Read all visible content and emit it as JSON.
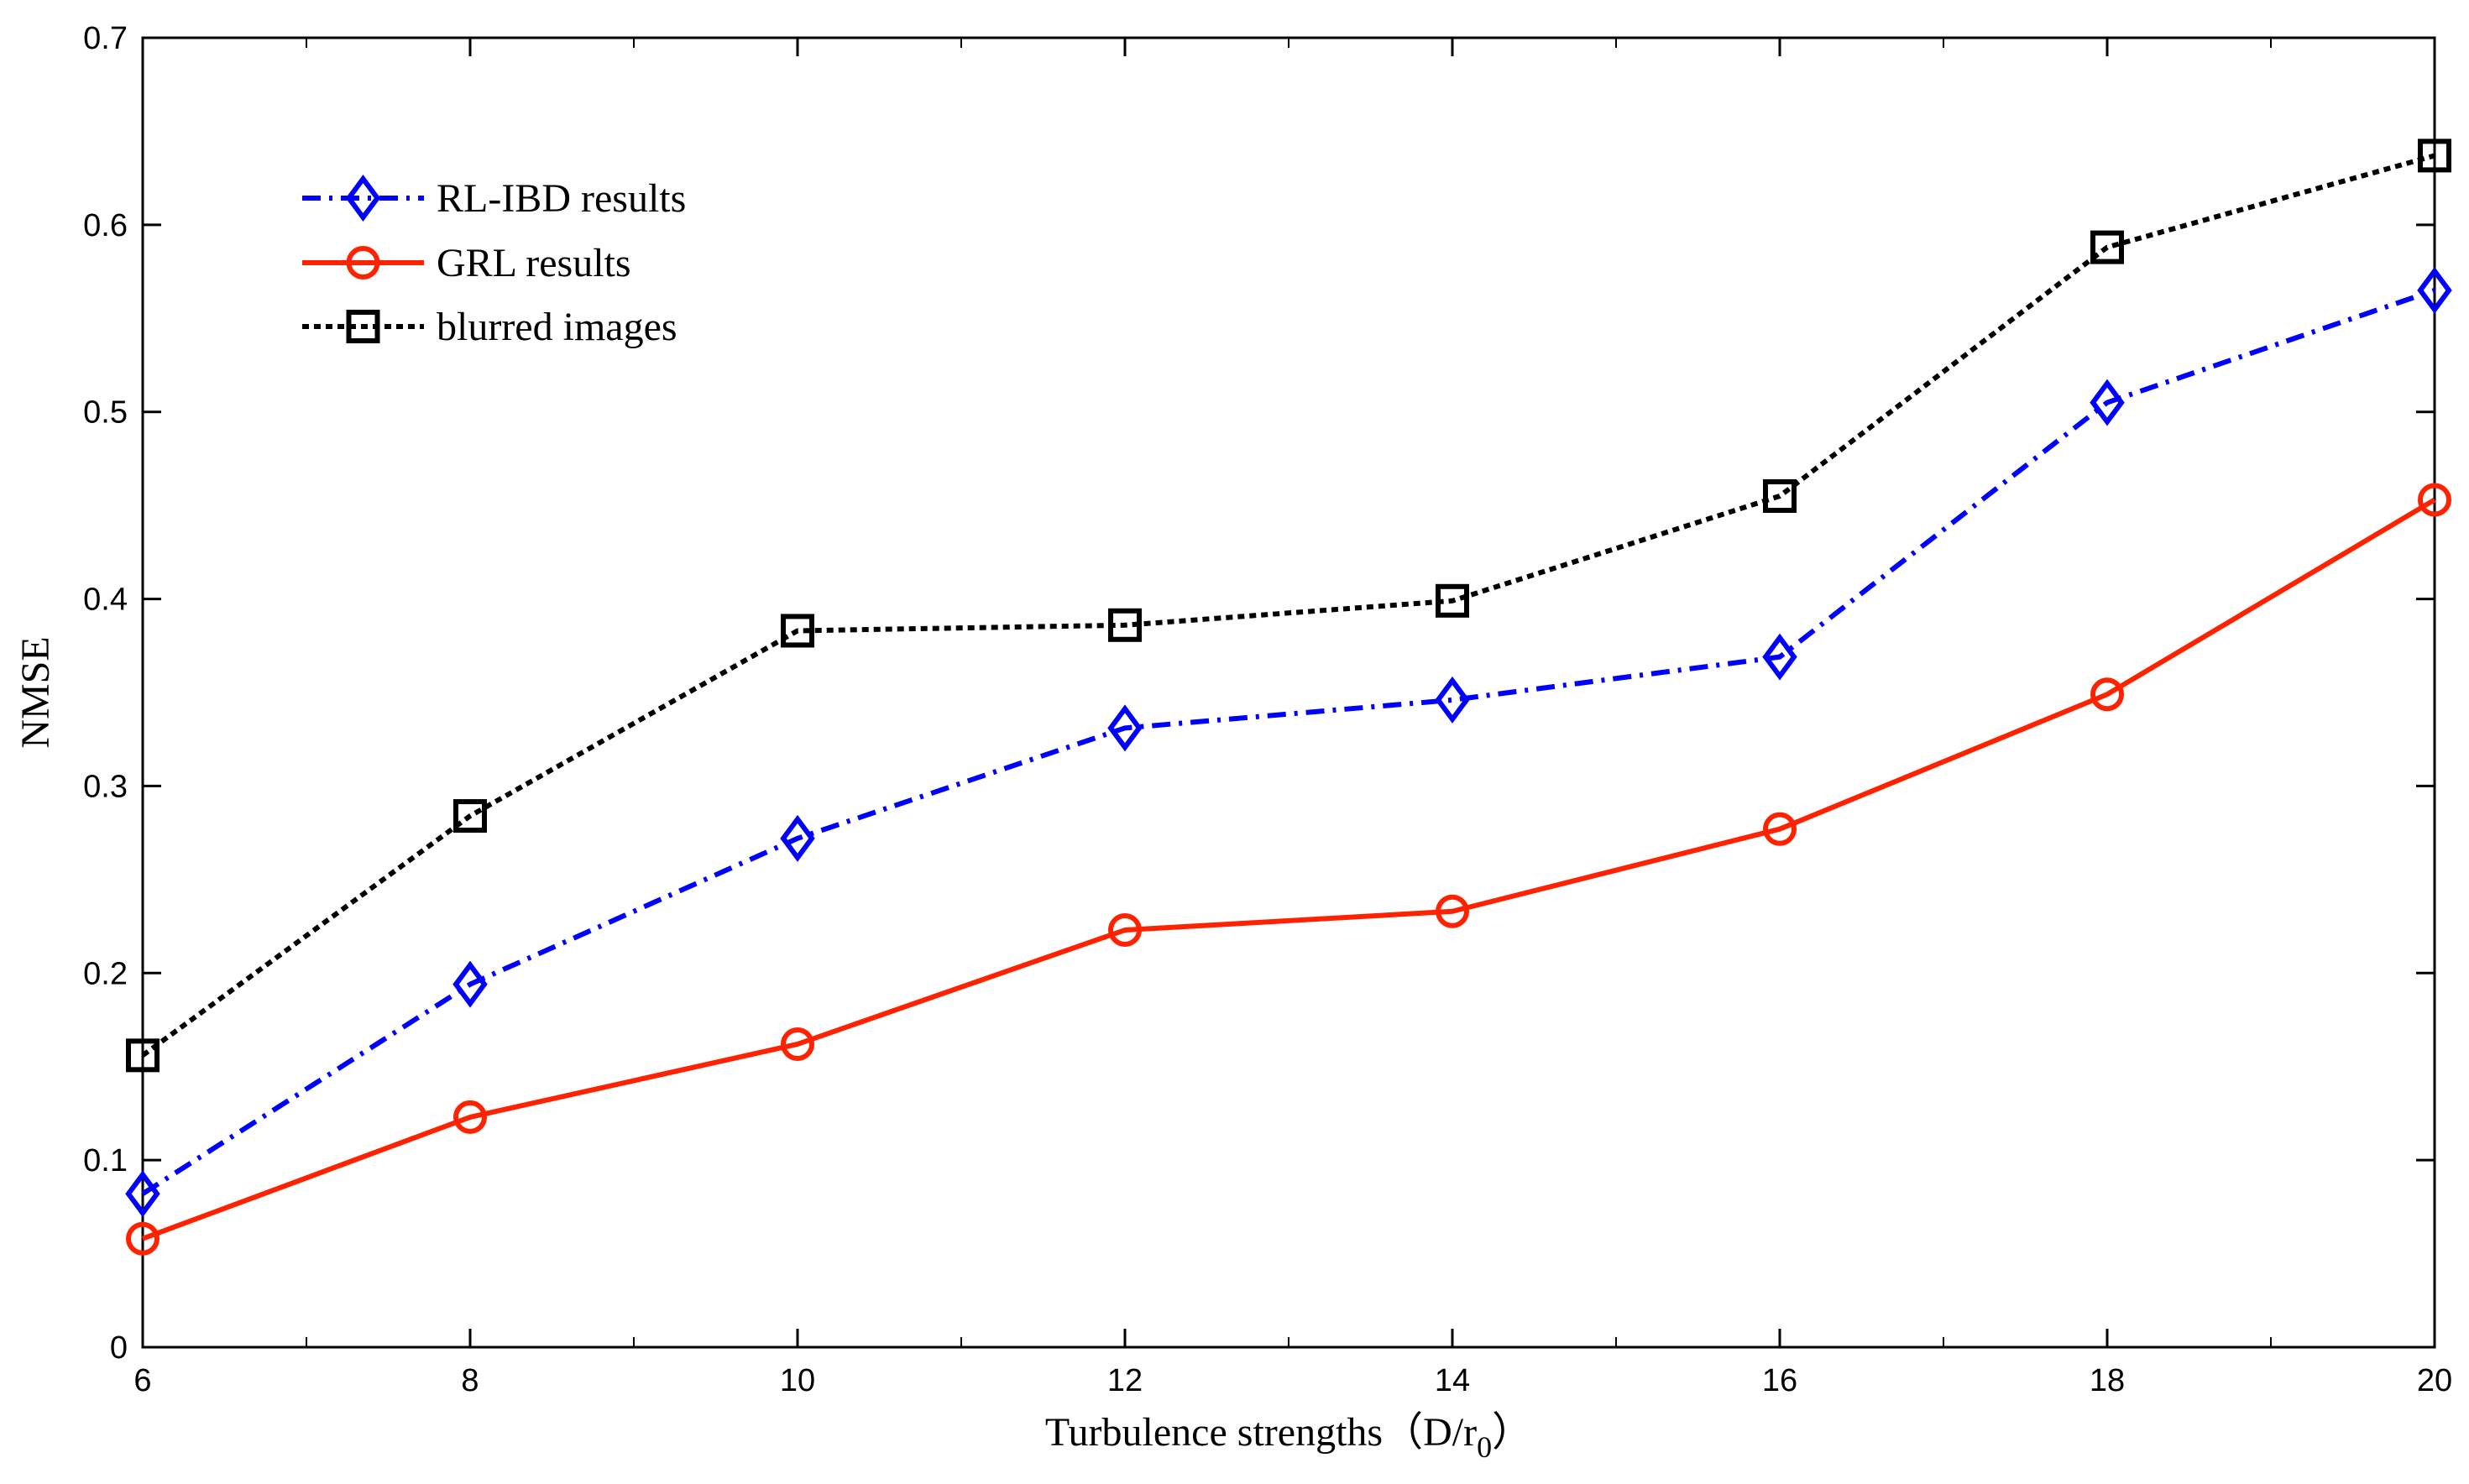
{
  "chart_data": {
    "type": "line",
    "title": "",
    "xlabel": "Turbulence strengths（D/r",
    "xlabel_subscript": "0",
    "xlabel_close": "）",
    "ylabel": "NMSE",
    "x": [
      6,
      8,
      10,
      12,
      14,
      16,
      18,
      20
    ],
    "xlim": [
      6,
      20
    ],
    "ylim": [
      0,
      0.7
    ],
    "xticks": [
      6,
      8,
      10,
      12,
      14,
      16,
      18,
      20
    ],
    "xtick_labels": [
      "6",
      "8",
      "10",
      "12",
      "14",
      "16",
      "18",
      "20"
    ],
    "yticks": [
      0,
      0.1,
      0.2,
      0.3,
      0.4,
      0.5,
      0.6,
      0.7
    ],
    "ytick_labels": [
      "0",
      "0.1",
      "0.2",
      "0.3",
      "0.4",
      "0.5",
      "0.6",
      "0.7"
    ],
    "xminor_ticks": [
      7,
      9,
      11,
      13,
      15,
      17,
      19
    ],
    "grid": false,
    "legend_position": "top-left",
    "series": [
      {
        "name": "RL-IBD results",
        "color": "#0000ff",
        "line_style": "dash-dot",
        "marker": "diamond",
        "values": [
          0.082,
          0.194,
          0.272,
          0.331,
          0.346,
          0.369,
          0.505,
          0.565
        ]
      },
      {
        "name": "GRL results",
        "color": "#ff2200",
        "line_style": "solid",
        "marker": "circle",
        "values": [
          0.058,
          0.123,
          0.162,
          0.223,
          0.233,
          0.277,
          0.349,
          0.453
        ]
      },
      {
        "name": "blurred images",
        "color": "#000000",
        "line_style": "dotted",
        "marker": "square",
        "values": [
          0.156,
          0.284,
          0.383,
          0.386,
          0.399,
          0.455,
          0.588,
          0.637
        ]
      }
    ]
  }
}
